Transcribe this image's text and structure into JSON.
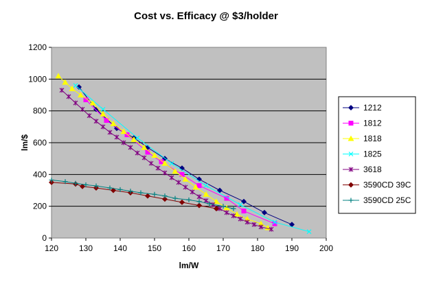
{
  "chart_data": {
    "type": "line",
    "title": "Cost vs. Efficacy @ $3/holder",
    "xlabel": "lm/W",
    "ylabel": "lm/$",
    "xlim": [
      120,
      200
    ],
    "ylim": [
      0,
      1200
    ],
    "xticks": [
      120,
      130,
      140,
      150,
      160,
      170,
      180,
      190,
      200
    ],
    "yticks": [
      0,
      200,
      400,
      600,
      800,
      1000,
      1200
    ],
    "grid": "horizontal",
    "plot_background": "#c0c0c0",
    "legend_position": "right",
    "series": [
      {
        "name": "1212",
        "color": "#000080",
        "marker": "diamond",
        "x": [
          128,
          133,
          139,
          144,
          148,
          153,
          158,
          163,
          169,
          176,
          182,
          190
        ],
        "y": [
          950,
          810,
          690,
          630,
          570,
          500,
          440,
          370,
          300,
          230,
          160,
          85
        ]
      },
      {
        "name": "1812",
        "color": "#ff00ff",
        "marker": "square",
        "x": [
          130,
          136,
          142,
          148,
          152,
          158,
          163,
          171,
          176,
          185
        ],
        "y": [
          870,
          740,
          650,
          540,
          480,
          400,
          330,
          250,
          170,
          90
        ]
      },
      {
        "name": "1818",
        "color": "#ffff00",
        "marker": "triangle",
        "x": [
          122,
          124,
          126,
          128.5,
          132,
          135,
          138,
          141,
          144,
          147,
          150,
          153,
          156,
          159,
          162,
          165,
          168,
          171,
          174,
          177,
          181,
          183
        ],
        "y": [
          1020,
          980,
          940,
          900,
          850,
          780,
          720,
          670,
          620,
          570,
          520,
          470,
          420,
          370,
          320,
          275,
          230,
          190,
          150,
          120,
          90,
          65
        ]
      },
      {
        "name": "1825",
        "color": "#00ffff",
        "marker": "x",
        "x": [
          127,
          135,
          145,
          155,
          165,
          175,
          185,
          195
        ],
        "y": [
          960,
          810,
          630,
          470,
          330,
          210,
          100,
          40
        ]
      },
      {
        "name": "3618",
        "color": "#800080",
        "marker": "star",
        "x": [
          123,
          125,
          127,
          129,
          131,
          133,
          135,
          137,
          139,
          141,
          143,
          145,
          147,
          149,
          151,
          153,
          155,
          157,
          159,
          161,
          163,
          165,
          167,
          169,
          171,
          173,
          175,
          177,
          179,
          181,
          184
        ],
        "y": [
          930,
          890,
          850,
          810,
          770,
          735,
          700,
          665,
          635,
          600,
          570,
          535,
          505,
          470,
          440,
          410,
          380,
          350,
          320,
          290,
          260,
          235,
          210,
          185,
          160,
          140,
          120,
          100,
          85,
          70,
          55
        ]
      },
      {
        "name": "3590CD 39C",
        "color": "#800000",
        "marker": "diamond",
        "x": [
          120,
          127,
          129,
          133,
          138,
          143,
          148,
          153,
          158,
          163,
          168
        ],
        "y": [
          350,
          340,
          325,
          315,
          300,
          285,
          265,
          245,
          225,
          205,
          185
        ]
      },
      {
        "name": "3590CD 25C",
        "color": "#008080",
        "marker": "plus",
        "x": [
          120,
          124,
          127,
          130,
          133,
          137,
          140,
          143,
          146,
          150,
          153,
          156,
          160,
          163,
          166,
          170,
          173
        ],
        "y": [
          365,
          355,
          345,
          335,
          328,
          315,
          305,
          295,
          285,
          275,
          265,
          250,
          240,
          230,
          215,
          200,
          185
        ]
      }
    ]
  }
}
